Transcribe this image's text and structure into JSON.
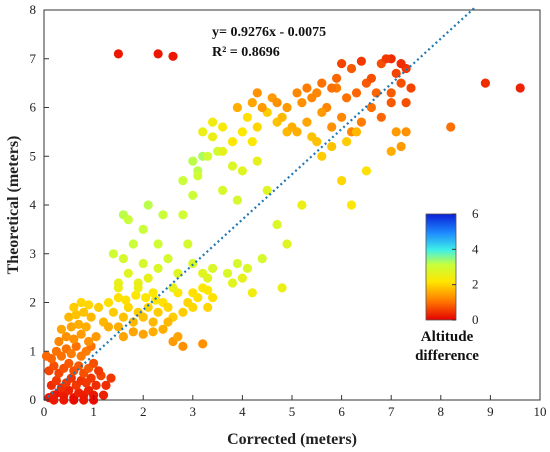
{
  "chart_data": {
    "type": "scatter",
    "title": "",
    "xlabel": "Corrected (meters)",
    "ylabel": "Theoretical (meters)",
    "xlim": [
      0,
      10
    ],
    "ylim": [
      0,
      8
    ],
    "xticks": [
      "0",
      "1",
      "2",
      "3",
      "4",
      "5",
      "6",
      "7",
      "8",
      "9",
      "10"
    ],
    "yticks": [
      "0",
      "1",
      "2",
      "3",
      "4",
      "5",
      "6",
      "7",
      "8"
    ],
    "grid": false,
    "annotations": {
      "equation": "y= 0.9276x - 0.0075",
      "r2": "R² = 0.8696"
    },
    "trendline": {
      "slope": 0.9276,
      "intercept": -0.0075,
      "x_range": [
        0,
        8.7
      ],
      "style": "dotted",
      "color": "#1f77b4"
    },
    "colorbar": {
      "title_line1": "Altitude",
      "title_line2": "difference",
      "min": 0,
      "max": 6,
      "ticks": [
        "0",
        "2",
        "4",
        "6"
      ],
      "colormap": "jet-reversed"
    },
    "points": [
      [
        0.1,
        0.05,
        0.2
      ],
      [
        0.2,
        0.1,
        0.3
      ],
      [
        0.3,
        0.15,
        0.2
      ],
      [
        0.4,
        0.1,
        0.25
      ],
      [
        0.5,
        0.2,
        0.3
      ],
      [
        0.6,
        0.05,
        0.2
      ],
      [
        0.7,
        0.15,
        0.3
      ],
      [
        0.8,
        0.1,
        0.25
      ],
      [
        0.9,
        0.2,
        0.3
      ],
      [
        1.0,
        0.1,
        0.2
      ],
      [
        0.15,
        0.3,
        0.4
      ],
      [
        0.25,
        0.4,
        0.5
      ],
      [
        0.35,
        0.25,
        0.4
      ],
      [
        0.45,
        0.35,
        0.5
      ],
      [
        0.55,
        0.45,
        0.45
      ],
      [
        0.65,
        0.3,
        0.5
      ],
      [
        0.75,
        0.4,
        0.45
      ],
      [
        0.85,
        0.35,
        0.5
      ],
      [
        0.95,
        0.45,
        0.5
      ],
      [
        1.05,
        0.3,
        0.4
      ],
      [
        0.1,
        0.6,
        0.6
      ],
      [
        0.2,
        0.7,
        0.7
      ],
      [
        0.3,
        0.55,
        0.6
      ],
      [
        0.4,
        0.65,
        0.7
      ],
      [
        0.5,
        0.75,
        0.8
      ],
      [
        0.6,
        0.6,
        0.7
      ],
      [
        0.7,
        0.7,
        0.8
      ],
      [
        0.8,
        0.55,
        0.7
      ],
      [
        0.9,
        0.65,
        0.8
      ],
      [
        1.0,
        0.75,
        0.7
      ],
      [
        0.05,
        0.9,
        0.9
      ],
      [
        0.15,
        0.85,
        0.9
      ],
      [
        0.25,
        1.0,
        1.0
      ],
      [
        0.35,
        0.9,
        1.0
      ],
      [
        0.45,
        1.05,
        1.0
      ],
      [
        0.55,
        0.95,
        1.1
      ],
      [
        0.65,
        1.1,
        1.0
      ],
      [
        0.75,
        0.9,
        1.1
      ],
      [
        0.85,
        1.0,
        1.1
      ],
      [
        0.95,
        1.1,
        1.0
      ],
      [
        0.3,
        1.2,
        1.2
      ],
      [
        0.45,
        1.3,
        1.3
      ],
      [
        0.6,
        1.25,
        1.3
      ],
      [
        0.75,
        1.35,
        1.4
      ],
      [
        0.9,
        1.2,
        1.3
      ],
      [
        1.05,
        1.3,
        1.4
      ],
      [
        0.35,
        1.45,
        1.5
      ],
      [
        0.55,
        1.5,
        1.5
      ],
      [
        0.7,
        1.55,
        1.6
      ],
      [
        0.85,
        1.5,
        1.6
      ],
      [
        0.5,
        1.7,
        1.7
      ],
      [
        0.65,
        1.75,
        1.8
      ],
      [
        0.8,
        1.8,
        1.8
      ],
      [
        0.95,
        1.7,
        1.7
      ],
      [
        0.6,
        1.9,
        1.9
      ],
      [
        0.75,
        2.0,
        2.0
      ],
      [
        0.9,
        1.95,
        2.0
      ],
      [
        1.1,
        1.9,
        1.9
      ],
      [
        1.2,
        1.6,
        1.7
      ],
      [
        1.3,
        1.5,
        1.6
      ],
      [
        1.15,
        0.5,
        0.6
      ],
      [
        1.25,
        0.3,
        0.4
      ],
      [
        1.2,
        0.1,
        0.3
      ],
      [
        1.1,
        0.6,
        0.5
      ],
      [
        1.35,
        0.45,
        0.5
      ],
      [
        0.2,
        0.0,
        0.2
      ],
      [
        0.4,
        0.0,
        0.2
      ],
      [
        0.6,
        0.0,
        0.1
      ],
      [
        0.8,
        0.0,
        0.2
      ],
      [
        1.0,
        0.0,
        0.1
      ],
      [
        1.4,
        1.8,
        1.9
      ],
      [
        1.6,
        1.7,
        1.8
      ],
      [
        1.7,
        1.9,
        2.0
      ],
      [
        1.8,
        1.6,
        1.7
      ],
      [
        1.9,
        1.8,
        1.9
      ],
      [
        2.0,
        1.7,
        1.8
      ],
      [
        2.1,
        1.9,
        2.0
      ],
      [
        2.2,
        1.6,
        1.7
      ],
      [
        1.5,
        1.5,
        1.6
      ],
      [
        2.3,
        1.8,
        1.9
      ],
      [
        1.3,
        2.0,
        2.1
      ],
      [
        1.5,
        2.1,
        2.1
      ],
      [
        1.65,
        2.05,
        2.1
      ],
      [
        1.85,
        2.15,
        2.2
      ],
      [
        2.05,
        2.1,
        2.2
      ],
      [
        2.25,
        2.05,
        2.2
      ],
      [
        2.4,
        2.0,
        2.1
      ],
      [
        2.5,
        1.9,
        2.0
      ],
      [
        2.6,
        1.7,
        1.9
      ],
      [
        2.2,
        2.2,
        2.2
      ],
      [
        1.6,
        1.3,
        1.5
      ],
      [
        1.8,
        1.4,
        1.5
      ],
      [
        2.0,
        1.35,
        1.5
      ],
      [
        2.2,
        1.4,
        1.6
      ],
      [
        2.4,
        1.45,
        1.6
      ],
      [
        2.6,
        1.2,
        1.4
      ],
      [
        2.7,
        1.3,
        1.5
      ],
      [
        2.8,
        1.1,
        1.3
      ],
      [
        3.2,
        1.15,
        1.3
      ],
      [
        2.5,
        1.6,
        1.7
      ],
      [
        2.8,
        1.8,
        1.9
      ],
      [
        2.9,
        2.0,
        2.0
      ],
      [
        3.0,
        1.9,
        2.0
      ],
      [
        3.1,
        2.1,
        2.1
      ],
      [
        3.2,
        2.3,
        2.2
      ],
      [
        3.3,
        1.9,
        2.0
      ],
      [
        3.4,
        2.1,
        2.1
      ],
      [
        2.7,
        2.2,
        2.2
      ],
      [
        3.0,
        2.2,
        2.1
      ],
      [
        3.3,
        2.25,
        2.2
      ],
      [
        1.5,
        2.4,
        2.6
      ],
      [
        1.7,
        2.6,
        2.7
      ],
      [
        1.9,
        2.4,
        2.6
      ],
      [
        2.1,
        2.5,
        2.6
      ],
      [
        2.3,
        2.7,
        2.8
      ],
      [
        1.6,
        2.9,
        2.9
      ],
      [
        2.0,
        2.8,
        2.9
      ],
      [
        2.5,
        2.9,
        2.9
      ],
      [
        1.4,
        3.0,
        3.0
      ],
      [
        1.8,
        3.2,
        3.1
      ],
      [
        1.6,
        3.8,
        3.2
      ],
      [
        1.7,
        3.7,
        3.1
      ],
      [
        2.0,
        3.5,
        3.1
      ],
      [
        2.3,
        3.2,
        3.0
      ],
      [
        2.4,
        3.8,
        3.1
      ],
      [
        2.1,
        4.0,
        3.2
      ],
      [
        1.5,
        2.3,
        2.5
      ],
      [
        1.9,
        2.3,
        2.5
      ],
      [
        2.7,
        2.6,
        2.7
      ],
      [
        2.6,
        2.3,
        2.6
      ],
      [
        2.8,
        3.8,
        3.0
      ],
      [
        3.0,
        4.2,
        3.1
      ],
      [
        3.1,
        4.7,
        3.2
      ],
      [
        2.8,
        4.5,
        3.1
      ],
      [
        3.2,
        5.0,
        3.3
      ],
      [
        2.9,
        3.2,
        2.9
      ],
      [
        3.0,
        2.8,
        2.8
      ],
      [
        3.2,
        2.6,
        2.7
      ],
      [
        3.3,
        2.5,
        2.7
      ],
      [
        3.4,
        2.7,
        2.8
      ],
      [
        3.1,
        4.6,
        3.0
      ],
      [
        3.0,
        4.9,
        3.2
      ],
      [
        3.7,
        2.6,
        2.8
      ],
      [
        3.8,
        2.4,
        2.7
      ],
      [
        3.9,
        2.8,
        2.9
      ],
      [
        4.1,
        2.7,
        2.8
      ],
      [
        4.2,
        2.2,
        2.4
      ],
      [
        4.0,
        2.5,
        2.6
      ],
      [
        4.4,
        2.9,
        2.9
      ],
      [
        4.8,
        2.3,
        2.5
      ],
      [
        3.3,
        5.0,
        3.0
      ],
      [
        3.5,
        5.1,
        3.0
      ],
      [
        3.6,
        4.3,
        2.9
      ],
      [
        3.8,
        4.8,
        2.8
      ],
      [
        3.9,
        4.1,
        2.9
      ],
      [
        4.0,
        4.7,
        2.7
      ],
      [
        4.3,
        4.9,
        2.6
      ],
      [
        4.5,
        4.3,
        2.7
      ],
      [
        4.7,
        3.6,
        2.8
      ],
      [
        4.9,
        3.2,
        2.7
      ],
      [
        3.2,
        5.5,
        2.5
      ],
      [
        3.4,
        5.7,
        2.4
      ],
      [
        3.6,
        5.6,
        2.3
      ],
      [
        3.8,
        5.3,
        2.2
      ],
      [
        4.0,
        5.5,
        2.2
      ],
      [
        4.1,
        5.8,
        2.1
      ],
      [
        4.3,
        5.6,
        2.0
      ],
      [
        4.5,
        5.9,
        1.9
      ],
      [
        4.7,
        5.7,
        1.8
      ],
      [
        4.9,
        5.5,
        1.7
      ],
      [
        3.9,
        6.0,
        1.6
      ],
      [
        4.2,
        6.1,
        1.5
      ],
      [
        4.6,
        6.2,
        1.4
      ],
      [
        4.9,
        6.0,
        1.4
      ],
      [
        5.2,
        6.1,
        1.3
      ],
      [
        5.5,
        6.3,
        1.2
      ],
      [
        5.7,
        6.0,
        1.2
      ],
      [
        5.9,
        6.4,
        1.1
      ],
      [
        6.1,
        6.2,
        1.0
      ],
      [
        6.3,
        6.3,
        0.9
      ],
      [
        5.0,
        5.6,
        1.6
      ],
      [
        5.3,
        5.7,
        1.5
      ],
      [
        5.6,
        5.9,
        1.4
      ],
      [
        5.8,
        5.6,
        1.3
      ],
      [
        6.0,
        5.8,
        1.2
      ],
      [
        6.2,
        5.5,
        1.2
      ],
      [
        6.4,
        5.7,
        1.1
      ],
      [
        6.6,
        6.0,
        1.0
      ],
      [
        6.8,
        5.8,
        0.9
      ],
      [
        7.0,
        6.1,
        0.8
      ],
      [
        5.4,
        5.4,
        1.8
      ],
      [
        5.6,
        5.0,
        1.9
      ],
      [
        5.8,
        5.2,
        1.8
      ],
      [
        6.0,
        4.5,
        2.0
      ],
      [
        6.2,
        4.0,
        2.2
      ],
      [
        6.5,
        4.7,
        2.1
      ],
      [
        5.2,
        4.0,
        2.5
      ],
      [
        6.1,
        5.3,
        1.9
      ],
      [
        6.3,
        5.5,
        1.7
      ],
      [
        5.5,
        5.3,
        1.8
      ],
      [
        5.3,
        6.4,
        1.1
      ],
      [
        5.6,
        6.5,
        1.0
      ],
      [
        5.9,
        6.6,
        0.9
      ],
      [
        6.2,
        6.8,
        0.8
      ],
      [
        6.5,
        6.5,
        0.8
      ],
      [
        6.8,
        6.9,
        0.7
      ],
      [
        7.1,
        6.7,
        0.6
      ],
      [
        7.3,
        6.8,
        0.5
      ],
      [
        6.0,
        6.9,
        0.6
      ],
      [
        6.7,
        6.3,
        0.9
      ],
      [
        7.0,
        6.3,
        0.8
      ],
      [
        7.2,
        6.5,
        0.7
      ],
      [
        7.4,
        6.4,
        0.6
      ],
      [
        7.3,
        6.1,
        0.7
      ],
      [
        7.1,
        5.5,
        1.4
      ],
      [
        7.3,
        5.5,
        1.3
      ],
      [
        7.2,
        5.2,
        1.4
      ],
      [
        7.0,
        5.1,
        1.6
      ],
      [
        8.2,
        5.6,
        1.0
      ],
      [
        8.9,
        6.5,
        0.4
      ],
      [
        9.6,
        6.4,
        0.3
      ],
      [
        1.5,
        7.1,
        0.2
      ],
      [
        2.3,
        7.1,
        0.2
      ],
      [
        2.6,
        7.05,
        0.2
      ],
      [
        7.0,
        7.0,
        0.4
      ],
      [
        7.2,
        6.9,
        0.4
      ],
      [
        6.9,
        7.0,
        0.5
      ],
      [
        6.4,
        6.95,
        0.5
      ],
      [
        6.6,
        6.6,
        0.7
      ],
      [
        5.8,
        6.4,
        1.0
      ],
      [
        4.3,
        6.3,
        1.3
      ],
      [
        4.4,
        6.0,
        1.4
      ],
      [
        4.7,
        6.1,
        1.3
      ],
      [
        5.1,
        6.3,
        1.2
      ],
      [
        5.4,
        6.2,
        1.2
      ],
      [
        3.6,
        5.1,
        2.6
      ],
      [
        3.4,
        5.4,
        2.5
      ],
      [
        4.2,
        5.3,
        2.2
      ],
      [
        4.8,
        5.8,
        1.7
      ],
      [
        5.1,
        5.5,
        1.6
      ]
    ]
  }
}
